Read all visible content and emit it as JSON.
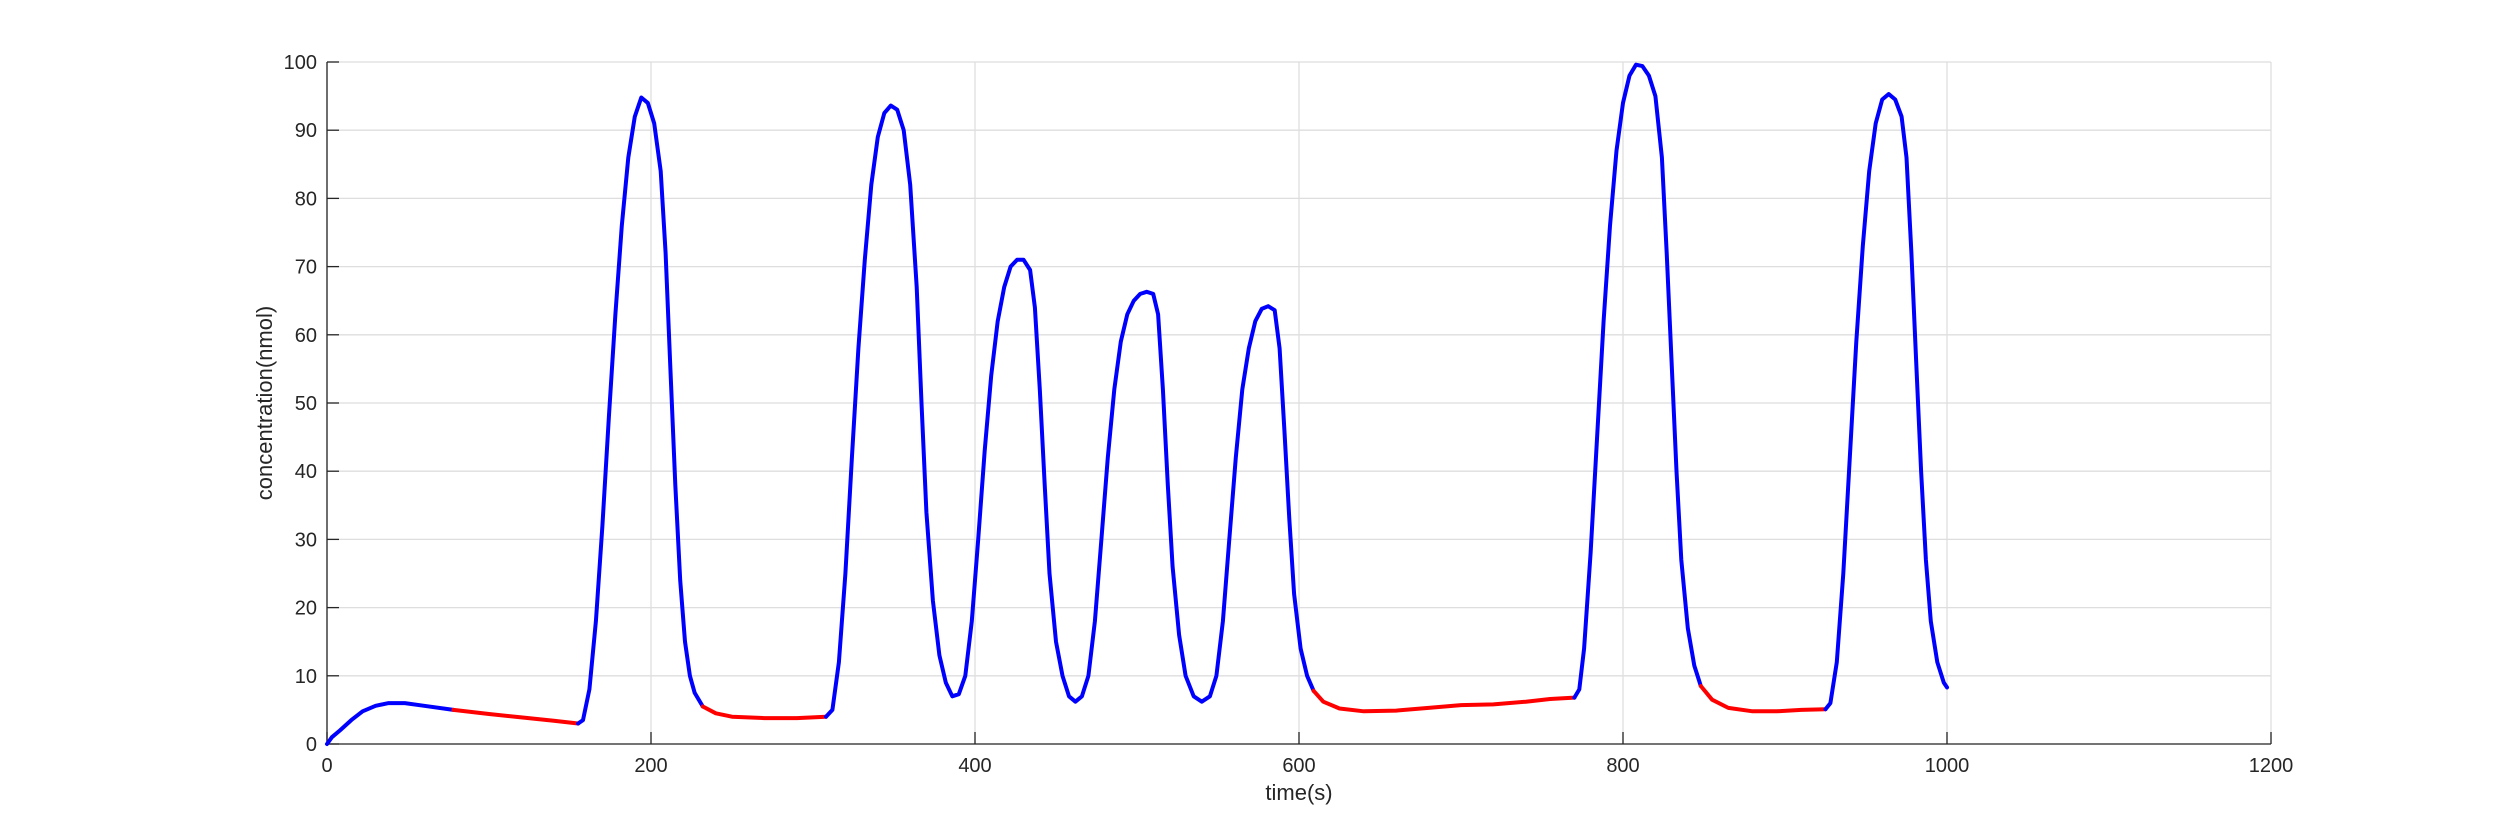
{
  "chart_data": {
    "type": "line",
    "title": "",
    "xlabel": "time(s)",
    "ylabel": "concentration(nmol)",
    "xlim": [
      0,
      1200
    ],
    "ylim": [
      0,
      100
    ],
    "xticks": [
      0,
      200,
      400,
      600,
      800,
      1000,
      1200
    ],
    "yticks": [
      0,
      10,
      20,
      30,
      40,
      50,
      60,
      70,
      80,
      90,
      100
    ],
    "grid": true,
    "colors": {
      "blue": "#0000ff",
      "red": "#ff0000"
    },
    "segments": [
      {
        "color": "blue",
        "points": [
          [
            0,
            0
          ],
          [
            3,
            1
          ],
          [
            8,
            2
          ],
          [
            15,
            3.5
          ],
          [
            22,
            4.8
          ],
          [
            30,
            5.6
          ],
          [
            38,
            6
          ],
          [
            48,
            6
          ],
          [
            60,
            5.6
          ],
          [
            78,
            5
          ]
        ]
      },
      {
        "color": "red",
        "points": [
          [
            78,
            5
          ],
          [
            100,
            4.4
          ],
          [
            120,
            3.9
          ],
          [
            140,
            3.4
          ],
          [
            155,
            3
          ]
        ]
      },
      {
        "color": "blue",
        "points": [
          [
            155,
            3
          ],
          [
            158,
            3.5
          ],
          [
            162,
            8
          ],
          [
            166,
            18
          ],
          [
            170,
            32
          ],
          [
            174,
            48
          ],
          [
            178,
            63
          ],
          [
            182,
            76
          ],
          [
            186,
            86
          ],
          [
            190,
            92
          ],
          [
            194,
            94.8
          ],
          [
            198,
            94
          ],
          [
            202,
            91
          ],
          [
            206,
            84
          ],
          [
            209,
            72
          ],
          [
            212,
            55
          ],
          [
            215,
            38
          ],
          [
            218,
            24
          ],
          [
            221,
            15
          ],
          [
            224,
            10
          ],
          [
            227,
            7.5
          ],
          [
            232,
            5.5
          ]
        ]
      },
      {
        "color": "red",
        "points": [
          [
            232,
            5.5
          ],
          [
            240,
            4.5
          ],
          [
            250,
            4
          ],
          [
            270,
            3.8
          ],
          [
            290,
            3.8
          ],
          [
            308,
            4
          ]
        ]
      },
      {
        "color": "blue",
        "points": [
          [
            308,
            4
          ],
          [
            312,
            5
          ],
          [
            316,
            12
          ],
          [
            320,
            25
          ],
          [
            324,
            42
          ],
          [
            328,
            58
          ],
          [
            332,
            71
          ],
          [
            336,
            82
          ],
          [
            340,
            89
          ],
          [
            344,
            92.5
          ],
          [
            348,
            93.6
          ],
          [
            352,
            93
          ],
          [
            356,
            90
          ],
          [
            360,
            82
          ],
          [
            364,
            67
          ],
          [
            367,
            50
          ],
          [
            370,
            34
          ],
          [
            374,
            21
          ],
          [
            378,
            13
          ],
          [
            382,
            9
          ],
          [
            386,
            7
          ],
          [
            390,
            7.3
          ],
          [
            394,
            10
          ],
          [
            398,
            18
          ],
          [
            402,
            30
          ],
          [
            406,
            43
          ],
          [
            410,
            54
          ],
          [
            414,
            62
          ],
          [
            418,
            67
          ],
          [
            422,
            70
          ],
          [
            426,
            71
          ],
          [
            430,
            71
          ],
          [
            434,
            69.5
          ],
          [
            437,
            64
          ],
          [
            440,
            52
          ],
          [
            443,
            38
          ],
          [
            446,
            25
          ],
          [
            450,
            15
          ],
          [
            454,
            10
          ],
          [
            458,
            7
          ],
          [
            462,
            6.2
          ],
          [
            466,
            7
          ],
          [
            470,
            10
          ],
          [
            474,
            18
          ],
          [
            478,
            30
          ],
          [
            482,
            42
          ],
          [
            486,
            52
          ],
          [
            490,
            59
          ],
          [
            494,
            63
          ],
          [
            498,
            65
          ],
          [
            502,
            66
          ],
          [
            506,
            66.3
          ],
          [
            510,
            66
          ],
          [
            513,
            63
          ],
          [
            516,
            52
          ],
          [
            519,
            38
          ],
          [
            522,
            26
          ],
          [
            526,
            16
          ],
          [
            530,
            10
          ],
          [
            535,
            7
          ],
          [
            540,
            6.2
          ],
          [
            545,
            7
          ],
          [
            549,
            10
          ],
          [
            553,
            18
          ],
          [
            557,
            30
          ],
          [
            561,
            42
          ],
          [
            565,
            52
          ],
          [
            569,
            58
          ],
          [
            573,
            62
          ],
          [
            577,
            63.8
          ],
          [
            581,
            64.2
          ],
          [
            585,
            63.6
          ],
          [
            588,
            58
          ],
          [
            591,
            46
          ],
          [
            594,
            33
          ],
          [
            597,
            22
          ],
          [
            601,
            14
          ],
          [
            605,
            10
          ],
          [
            609,
            7.8
          ]
        ]
      },
      {
        "color": "red",
        "points": [
          [
            609,
            7.8
          ],
          [
            615,
            6.2
          ],
          [
            625,
            5.2
          ],
          [
            640,
            4.8
          ],
          [
            660,
            4.9
          ],
          [
            680,
            5.3
          ],
          [
            700,
            5.7
          ],
          [
            720,
            5.8
          ],
          [
            740,
            6.2
          ],
          [
            755,
            6.6
          ],
          [
            770,
            6.8
          ]
        ]
      },
      {
        "color": "blue",
        "points": [
          [
            770,
            6.8
          ],
          [
            773,
            8
          ],
          [
            776,
            14
          ],
          [
            780,
            28
          ],
          [
            784,
            45
          ],
          [
            788,
            62
          ],
          [
            792,
            76
          ],
          [
            796,
            87
          ],
          [
            800,
            94
          ],
          [
            804,
            98
          ],
          [
            808,
            99.6
          ],
          [
            812,
            99.4
          ],
          [
            816,
            98
          ],
          [
            820,
            95
          ],
          [
            824,
            86
          ],
          [
            827,
            72
          ],
          [
            830,
            56
          ],
          [
            833,
            40
          ],
          [
            836,
            27
          ],
          [
            840,
            17
          ],
          [
            844,
            11.5
          ],
          [
            848,
            8.5
          ]
        ]
      },
      {
        "color": "red",
        "points": [
          [
            848,
            8.5
          ],
          [
            855,
            6.5
          ],
          [
            865,
            5.3
          ],
          [
            880,
            4.8
          ],
          [
            895,
            4.8
          ],
          [
            910,
            5
          ],
          [
            925,
            5.1
          ]
        ]
      },
      {
        "color": "blue",
        "points": [
          [
            925,
            5.1
          ],
          [
            928,
            6
          ],
          [
            932,
            12
          ],
          [
            936,
            25
          ],
          [
            940,
            42
          ],
          [
            944,
            59
          ],
          [
            948,
            73
          ],
          [
            952,
            84
          ],
          [
            956,
            91
          ],
          [
            960,
            94.5
          ],
          [
            964,
            95.3
          ],
          [
            968,
            94.5
          ],
          [
            972,
            92
          ],
          [
            975,
            86
          ],
          [
            978,
            72
          ],
          [
            981,
            56
          ],
          [
            984,
            40
          ],
          [
            987,
            27
          ],
          [
            990,
            18
          ],
          [
            994,
            12
          ],
          [
            998,
            9
          ],
          [
            1000,
            8.3
          ]
        ]
      }
    ]
  }
}
